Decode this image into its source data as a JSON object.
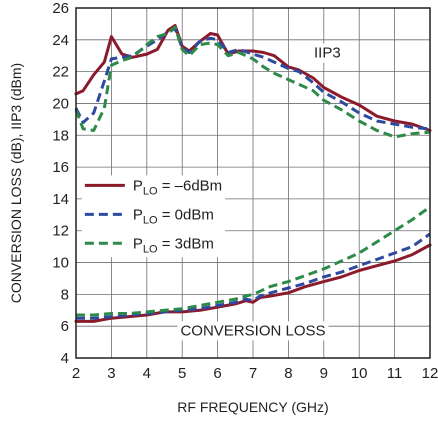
{
  "chart_data": {
    "type": "line",
    "xlabel": "RF FREQUENCY (GHz)",
    "ylabel": "CONVERSION LOSS (dB), IIP3 (dBm)",
    "xlim": [
      2,
      12
    ],
    "ylim": [
      4,
      26
    ],
    "x_ticks": [
      "2",
      "3",
      "4",
      "5",
      "6",
      "7",
      "8",
      "9",
      "10",
      "11",
      "12"
    ],
    "y_ticks": [
      "4",
      "6",
      "8",
      "10",
      "12",
      "14",
      "16",
      "18",
      "20",
      "22",
      "24",
      "26"
    ],
    "grid": true,
    "legend_position": "left-middle",
    "legend": [
      {
        "prefix": "P",
        "sub": "LO",
        "suffix": " = –6dBm"
      },
      {
        "prefix": "P",
        "sub": "LO",
        "suffix": " = 0dBm"
      },
      {
        "prefix": "P",
        "sub": "LO",
        "suffix": " = 3dBm"
      }
    ],
    "annotations": {
      "iip3": "IIP3",
      "conversion_loss": "CONVERSION LOSS"
    },
    "series": [
      {
        "group": "IIP3",
        "legend_index": 0,
        "color": "#8b1a2b",
        "dash": "solid",
        "x": [
          2.0,
          2.2,
          2.5,
          2.8,
          3.0,
          3.3,
          3.6,
          4.0,
          4.3,
          4.6,
          4.8,
          5.0,
          5.2,
          5.5,
          5.8,
          6.0,
          6.3,
          6.6,
          7.0,
          7.3,
          7.6,
          8.0,
          8.3,
          8.7,
          9.0,
          9.5,
          10.0,
          10.5,
          11.0,
          11.5,
          12.0
        ],
        "y": [
          20.6,
          20.8,
          21.8,
          22.6,
          24.2,
          23.1,
          22.9,
          23.1,
          23.4,
          24.6,
          24.9,
          23.6,
          23.3,
          23.9,
          24.4,
          24.3,
          23.1,
          23.3,
          23.3,
          23.2,
          23.0,
          22.3,
          22.1,
          21.6,
          21.0,
          20.4,
          19.9,
          19.2,
          18.9,
          18.7,
          18.3
        ]
      },
      {
        "group": "IIP3",
        "legend_index": 1,
        "color": "#2e4a9e",
        "dash": "dashed",
        "x": [
          2.0,
          2.2,
          2.5,
          2.8,
          3.0,
          3.3,
          3.6,
          4.0,
          4.3,
          4.6,
          4.8,
          5.0,
          5.2,
          5.5,
          5.8,
          6.0,
          6.3,
          6.6,
          7.0,
          7.3,
          7.6,
          8.0,
          8.3,
          8.7,
          9.0,
          9.5,
          10.0,
          10.5,
          11.0,
          11.5,
          12.0
        ],
        "y": [
          19.7,
          18.8,
          19.4,
          21.4,
          22.8,
          22.9,
          23.0,
          23.6,
          24.0,
          24.5,
          24.7,
          23.5,
          23.2,
          23.9,
          24.1,
          24.0,
          23.2,
          23.4,
          23.1,
          22.9,
          22.6,
          22.2,
          22.0,
          21.3,
          20.7,
          20.1,
          19.4,
          18.9,
          18.7,
          18.5,
          18.4
        ]
      },
      {
        "group": "IIP3",
        "legend_index": 2,
        "color": "#2d8a48",
        "dash": "dashed",
        "x": [
          2.0,
          2.2,
          2.5,
          2.8,
          3.0,
          3.3,
          3.6,
          4.0,
          4.3,
          4.6,
          4.8,
          5.0,
          5.2,
          5.5,
          5.8,
          6.0,
          6.3,
          6.6,
          7.0,
          7.3,
          7.6,
          8.0,
          8.3,
          8.7,
          9.0,
          9.5,
          10.0,
          10.5,
          11.0,
          11.5,
          12.0
        ],
        "y": [
          19.6,
          18.4,
          18.3,
          19.7,
          22.4,
          22.7,
          22.9,
          23.7,
          24.2,
          24.4,
          24.8,
          23.4,
          23.0,
          23.7,
          23.8,
          23.7,
          23.0,
          23.2,
          22.8,
          22.3,
          21.9,
          21.5,
          21.2,
          20.8,
          20.2,
          19.6,
          18.9,
          18.3,
          17.9,
          18.1,
          18.2
        ]
      },
      {
        "group": "CONVERSION LOSS",
        "legend_index": 0,
        "color": "#8b1a2b",
        "dash": "solid",
        "x": [
          2.0,
          2.5,
          3.0,
          3.5,
          4.0,
          4.5,
          5.0,
          5.5,
          6.0,
          6.5,
          6.8,
          7.0,
          7.2,
          7.5,
          8.0,
          8.5,
          9.0,
          9.5,
          10.0,
          10.5,
          11.0,
          11.5,
          12.0
        ],
        "y": [
          6.3,
          6.3,
          6.5,
          6.6,
          6.7,
          6.9,
          6.9,
          7.0,
          7.2,
          7.4,
          7.6,
          7.5,
          7.8,
          7.9,
          8.1,
          8.5,
          8.8,
          9.1,
          9.5,
          9.8,
          10.1,
          10.5,
          11.1
        ]
      },
      {
        "group": "CONVERSION LOSS",
        "legend_index": 1,
        "color": "#2e4a9e",
        "dash": "dashed",
        "x": [
          2.0,
          2.5,
          3.0,
          3.5,
          4.0,
          4.5,
          5.0,
          5.5,
          6.0,
          6.5,
          6.8,
          7.0,
          7.2,
          7.5,
          8.0,
          8.5,
          9.0,
          9.5,
          10.0,
          10.5,
          11.0,
          11.5,
          12.0
        ],
        "y": [
          6.5,
          6.5,
          6.6,
          6.7,
          6.8,
          6.9,
          7.0,
          7.1,
          7.3,
          7.5,
          7.7,
          7.6,
          7.9,
          8.1,
          8.4,
          8.7,
          9.1,
          9.4,
          9.8,
          10.2,
          10.6,
          11.0,
          11.8
        ]
      },
      {
        "group": "CONVERSION LOSS",
        "legend_index": 2,
        "color": "#2d8a48",
        "dash": "dashed",
        "x": [
          2.0,
          2.5,
          3.0,
          3.5,
          4.0,
          4.5,
          5.0,
          5.5,
          6.0,
          6.5,
          6.8,
          7.0,
          7.2,
          7.5,
          8.0,
          8.5,
          9.0,
          9.5,
          10.0,
          10.5,
          11.0,
          11.5,
          12.0
        ],
        "y": [
          6.7,
          6.7,
          6.8,
          6.8,
          6.9,
          7.0,
          7.1,
          7.3,
          7.5,
          7.7,
          7.9,
          8.0,
          8.2,
          8.5,
          8.8,
          9.2,
          9.6,
          10.1,
          10.6,
          11.3,
          12.0,
          12.7,
          13.5
        ]
      }
    ]
  }
}
